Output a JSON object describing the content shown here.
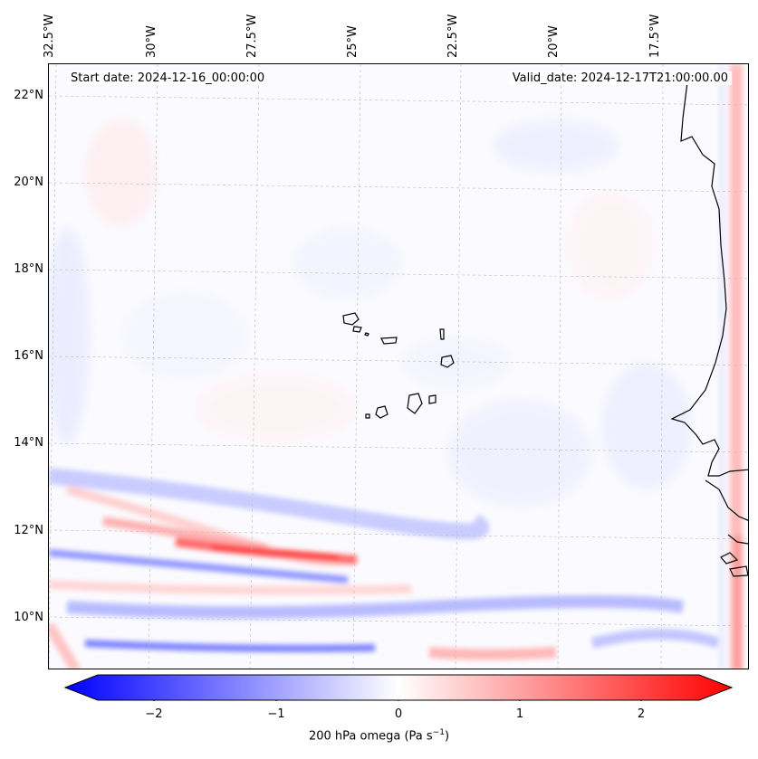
{
  "map": {
    "start_date": "Start date: 2024-12-16_00:00:00",
    "valid_date": "Valid_date: 2024-12-17T21:00:00.00",
    "lon_labels": [
      "32.5°W",
      "30°W",
      "27.5°W",
      "25°W",
      "22.5°W",
      "20°W",
      "17.5°W"
    ],
    "lat_labels": [
      "22°N",
      "20°N",
      "18°N",
      "16°N",
      "14°N",
      "12°N",
      "10°N"
    ]
  },
  "colorbar": {
    "label": "200 hPa omega (Pa s",
    "label_sup": "−1",
    "label_end": ")",
    "ticks": [
      "−2",
      "−1",
      "0",
      "1",
      "2"
    ],
    "min": -2.7,
    "max": 2.7,
    "colors": {
      "low": "#0000ff",
      "mid": "#ffffff",
      "high": "#ff0000"
    }
  },
  "chart_data": {
    "type": "heatmap",
    "title": "",
    "variable": "200 hPa omega (Pa s−1)",
    "xlabel": "",
    "ylabel": "",
    "x_ticks": [
      "32.5°W",
      "30°W",
      "27.5°W",
      "25°W",
      "22.5°W",
      "20°W",
      "17.5°W"
    ],
    "y_ticks": [
      "22°N",
      "20°N",
      "18°N",
      "16°N",
      "14°N",
      "12°N",
      "10°N"
    ],
    "color_range": [
      -2.7,
      2.7
    ]
  }
}
